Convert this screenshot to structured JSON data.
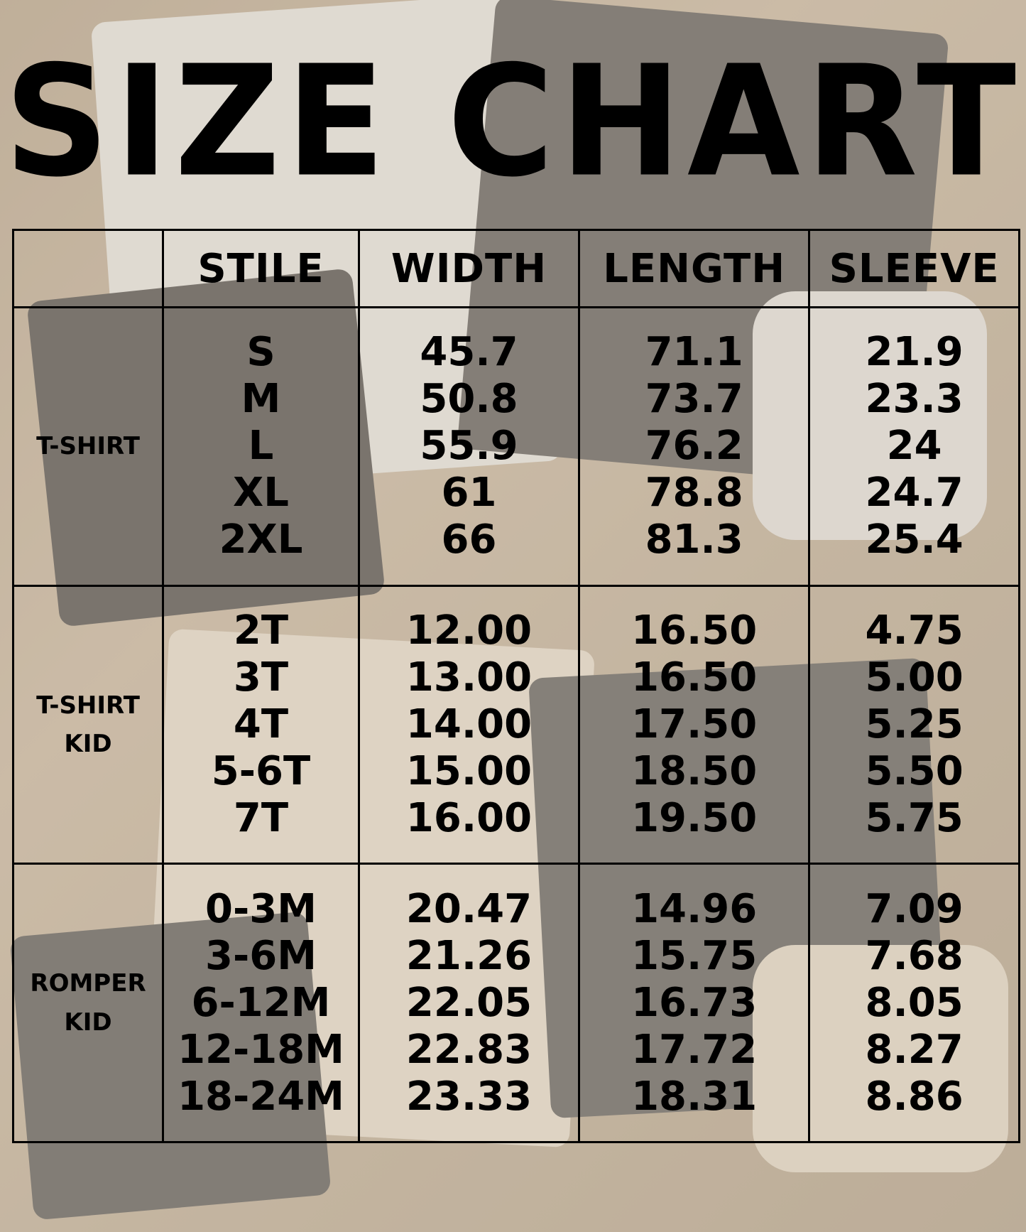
{
  "title": "SIZE CHART",
  "headers": [
    "",
    "STILE",
    "WIDTH",
    "LENGTH",
    "SLEEVE"
  ],
  "groups": [
    {
      "label": [
        "T-SHIRT"
      ],
      "sizes": [
        "S",
        "M",
        "L",
        "XL",
        "2XL"
      ],
      "width": [
        "45.7",
        "50.8",
        "55.9",
        "61",
        "66"
      ],
      "length": [
        "71.1",
        "73.7",
        "76.2",
        "78.8",
        "81.3"
      ],
      "sleeve": [
        "21.9",
        "23.3",
        "24",
        "24.7",
        "25.4"
      ]
    },
    {
      "label": [
        "T-SHIRT",
        "KID"
      ],
      "sizes": [
        "2T",
        "3T",
        "4T",
        "5-6T",
        "7T"
      ],
      "width": [
        "12.00",
        "13.00",
        "14.00",
        "15.00",
        "16.00"
      ],
      "length": [
        "16.50",
        "16.50",
        "17.50",
        "18.50",
        "19.50"
      ],
      "sleeve": [
        "4.75",
        "5.00",
        "5.25",
        "5.50",
        "5.75"
      ]
    },
    {
      "label": [
        "ROMPER",
        "KID"
      ],
      "sizes": [
        "0-3M",
        "3-6M",
        "6-12M",
        "12-18M",
        "18-24M"
      ],
      "width": [
        "20.47",
        "21.26",
        "22.05",
        "22.83",
        "23.33"
      ],
      "length": [
        "14.96",
        "15.75",
        "16.73",
        "17.72",
        "18.31"
      ],
      "sleeve": [
        "7.09",
        "7.68",
        "8.05",
        "8.27",
        "8.86"
      ]
    }
  ]
}
